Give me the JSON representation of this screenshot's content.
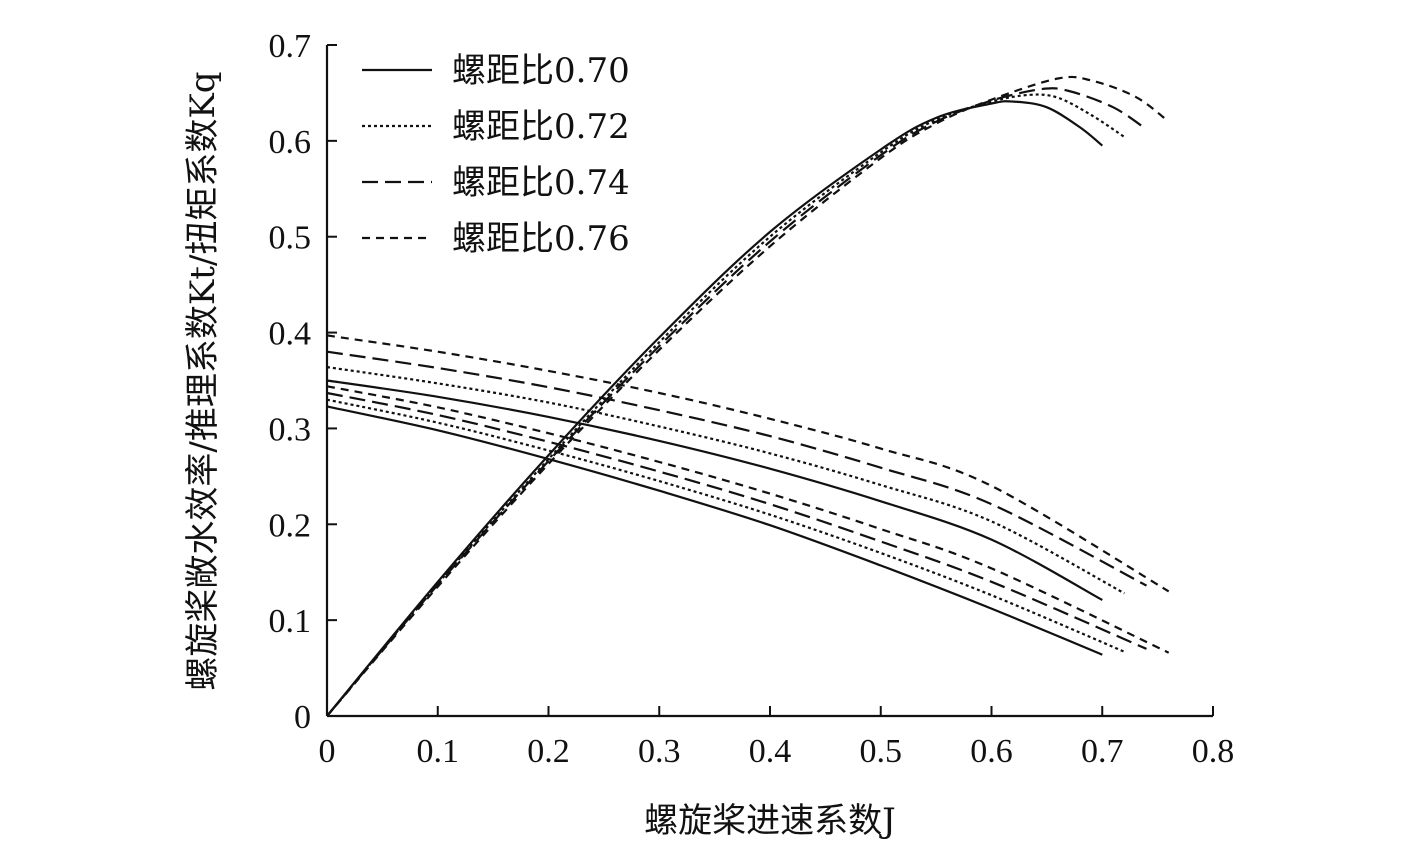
{
  "chart_data": {
    "type": "line",
    "title": "",
    "xlabel": "螺旋桨进速系数J",
    "ylabel": "螺旋桨敞水效率/推理系数Kt/扭矩系数Kq",
    "xlim": [
      0,
      0.8
    ],
    "ylim": [
      0,
      0.7
    ],
    "x_ticks": [
      "0",
      "0.1",
      "0.2",
      "0.3",
      "0.4",
      "0.5",
      "0.6",
      "0.7",
      "0.8"
    ],
    "y_ticks": [
      "0",
      "0.1",
      "0.2",
      "0.3",
      "0.4",
      "0.5",
      "0.6",
      "0.7"
    ],
    "legend_position": "top-left",
    "series": [
      {
        "name": "螺距比0.70",
        "dash": "solid",
        "efficiency": {
          "x": [
            0,
            0.1,
            0.2,
            0.3,
            0.4,
            0.5,
            0.55,
            0.6,
            0.62,
            0.65,
            0.68,
            0.7
          ],
          "y": [
            0,
            0.14,
            0.272,
            0.395,
            0.505,
            0.591,
            0.624,
            0.639,
            0.641,
            0.635,
            0.614,
            0.595
          ]
        },
        "kt": {
          "x": [
            0,
            0.1,
            0.2,
            0.3,
            0.4,
            0.5,
            0.6,
            0.7
          ],
          "y": [
            0.323,
            0.298,
            0.268,
            0.235,
            0.199,
            0.157,
            0.112,
            0.064
          ]
        },
        "kq": {
          "x": [
            0,
            0.1,
            0.2,
            0.3,
            0.4,
            0.5,
            0.6,
            0.7
          ],
          "y": [
            0.35,
            0.333,
            0.312,
            0.287,
            0.258,
            0.224,
            0.184,
            0.121
          ]
        }
      },
      {
        "name": "螺距比0.72",
        "dash": "dotted",
        "efficiency": {
          "x": [
            0,
            0.1,
            0.2,
            0.3,
            0.4,
            0.5,
            0.55,
            0.6,
            0.635,
            0.66,
            0.69,
            0.72
          ],
          "y": [
            0,
            0.138,
            0.268,
            0.39,
            0.5,
            0.588,
            0.622,
            0.641,
            0.648,
            0.645,
            0.627,
            0.604
          ]
        },
        "kt": {
          "x": [
            0,
            0.1,
            0.2,
            0.3,
            0.4,
            0.5,
            0.6,
            0.72
          ],
          "y": [
            0.33,
            0.306,
            0.277,
            0.245,
            0.21,
            0.17,
            0.126,
            0.067
          ]
        },
        "kq": {
          "x": [
            0,
            0.1,
            0.2,
            0.3,
            0.4,
            0.5,
            0.6,
            0.72
          ],
          "y": [
            0.364,
            0.347,
            0.327,
            0.302,
            0.274,
            0.241,
            0.203,
            0.128
          ]
        }
      },
      {
        "name": "螺距比0.74",
        "dash": "long-dash",
        "efficiency": {
          "x": [
            0,
            0.1,
            0.2,
            0.3,
            0.4,
            0.5,
            0.55,
            0.6,
            0.645,
            0.67,
            0.71,
            0.74
          ],
          "y": [
            0,
            0.137,
            0.266,
            0.386,
            0.495,
            0.585,
            0.62,
            0.642,
            0.654,
            0.652,
            0.635,
            0.612
          ]
        },
        "kt": {
          "x": [
            0,
            0.1,
            0.2,
            0.3,
            0.4,
            0.5,
            0.6,
            0.74
          ],
          "y": [
            0.337,
            0.314,
            0.286,
            0.255,
            0.221,
            0.182,
            0.14,
            0.07
          ]
        },
        "kq": {
          "x": [
            0,
            0.1,
            0.2,
            0.3,
            0.4,
            0.5,
            0.6,
            0.74
          ],
          "y": [
            0.38,
            0.363,
            0.343,
            0.319,
            0.292,
            0.259,
            0.221,
            0.136
          ]
        }
      },
      {
        "name": "螺距比0.76",
        "dash": "short-dash",
        "efficiency": {
          "x": [
            0,
            0.1,
            0.2,
            0.3,
            0.4,
            0.5,
            0.55,
            0.6,
            0.66,
            0.69,
            0.73,
            0.76
          ],
          "y": [
            0,
            0.135,
            0.263,
            0.382,
            0.49,
            0.582,
            0.618,
            0.643,
            0.665,
            0.663,
            0.646,
            0.62
          ]
        },
        "kt": {
          "x": [
            0,
            0.1,
            0.2,
            0.3,
            0.4,
            0.5,
            0.6,
            0.76
          ],
          "y": [
            0.344,
            0.322,
            0.295,
            0.265,
            0.232,
            0.195,
            0.154,
            0.066
          ]
        },
        "kq": {
          "x": [
            0,
            0.1,
            0.2,
            0.3,
            0.4,
            0.5,
            0.6,
            0.76
          ],
          "y": [
            0.397,
            0.38,
            0.36,
            0.337,
            0.31,
            0.279,
            0.24,
            0.13
          ]
        }
      }
    ]
  }
}
